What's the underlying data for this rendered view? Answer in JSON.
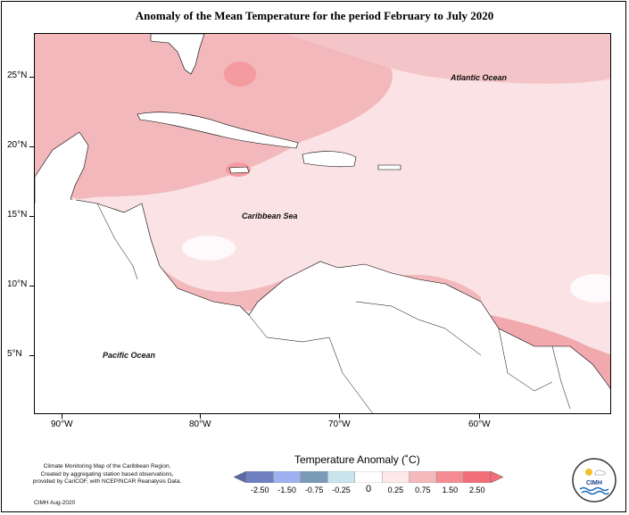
{
  "title": "Anomaly of the Mean Temperature for the period February to July 2020",
  "labels": {
    "atlantic": "Atlantic Ocean",
    "caribbean": "Caribbean Sea",
    "pacific": "Pacific Ocean"
  },
  "lat_ticks": [
    "25°N",
    "20°N",
    "15°N",
    "10°N",
    "5°N"
  ],
  "lon_ticks": [
    "90°W",
    "80°W",
    "70°W",
    "60°W"
  ],
  "legend": {
    "title": "Temperature Anomaly (˚C)",
    "ticks": [
      "-2.50",
      "-1.50",
      "-0.75",
      "-0.25",
      "0",
      "0.25",
      "0.75",
      "1.50",
      "2.50"
    ],
    "colors": [
      "#6f7fc0",
      "#9fb1f0",
      "#7a9bb8",
      "#c9e4ea",
      "#ffffff",
      "#fde9ea",
      "#f4b9bc",
      "#f58c92",
      "#f26e79"
    ]
  },
  "credits": {
    "line1": "Climate Monitoring Map of the Caribbean Region,",
    "line2": "Created by aggregating station based observations,",
    "line3": "provided by CariCOF, with NCEP/NCAR Reanalysis Data.",
    "date": "CIMH Aug-2020"
  },
  "logo_text": "CIMH"
}
